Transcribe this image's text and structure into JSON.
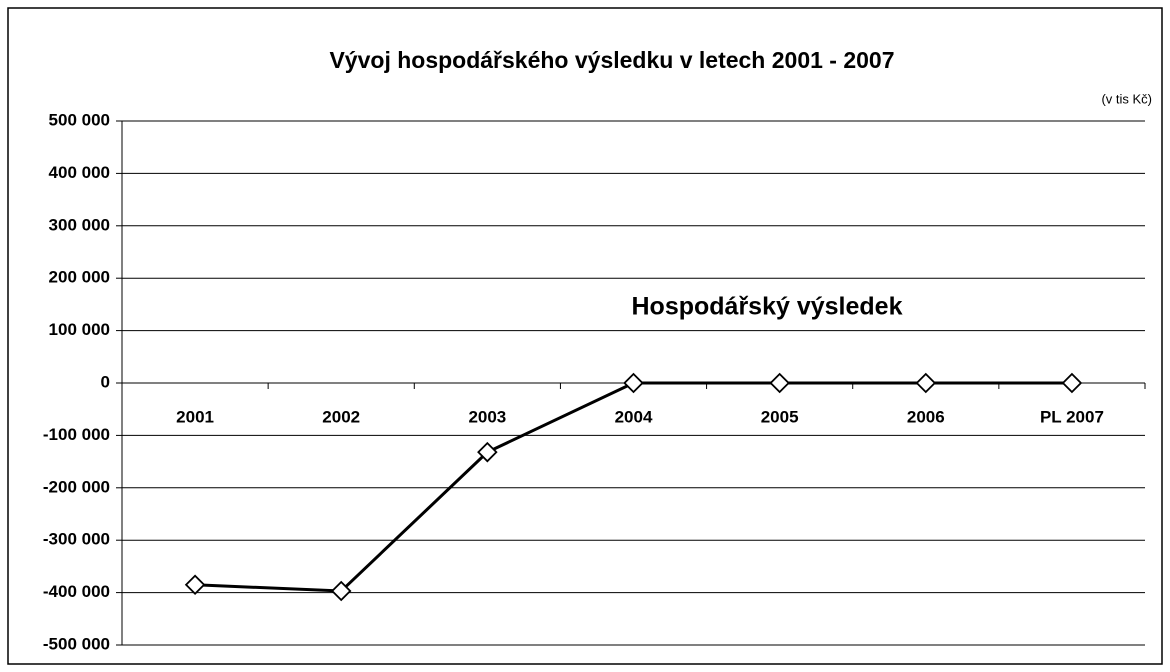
{
  "chart_data": {
    "type": "line",
    "title": "Vývoj hospodářského výsledku v letech 2001 - 2007",
    "subtitle": "(v tis  Kč)",
    "categories": [
      "2001",
      "2002",
      "2003",
      "2004",
      "2005",
      "2006",
      "PL 2007"
    ],
    "series": [
      {
        "name": "Hospodářský výsledek",
        "color": "#000000",
        "values": [
          -385000,
          -397000,
          -132000,
          0,
          0,
          0,
          0
        ]
      }
    ],
    "ylim": [
      -500000,
      500000
    ],
    "yticks": [
      {
        "value": -500000,
        "label": "-500 000"
      },
      {
        "value": -400000,
        "label": "-400 000"
      },
      {
        "value": -300000,
        "label": "-300 000"
      },
      {
        "value": -200000,
        "label": "-200 000"
      },
      {
        "value": -100000,
        "label": "-100 000"
      },
      0,
      {
        "value": 100000,
        "label": "100 000"
      },
      {
        "value": 200000,
        "label": "200 000"
      },
      {
        "value": 300000,
        "label": "300 000"
      },
      {
        "value": 400000,
        "label": "400 000"
      },
      {
        "value": 500000,
        "label": "500 000"
      }
    ],
    "grid": true
  }
}
